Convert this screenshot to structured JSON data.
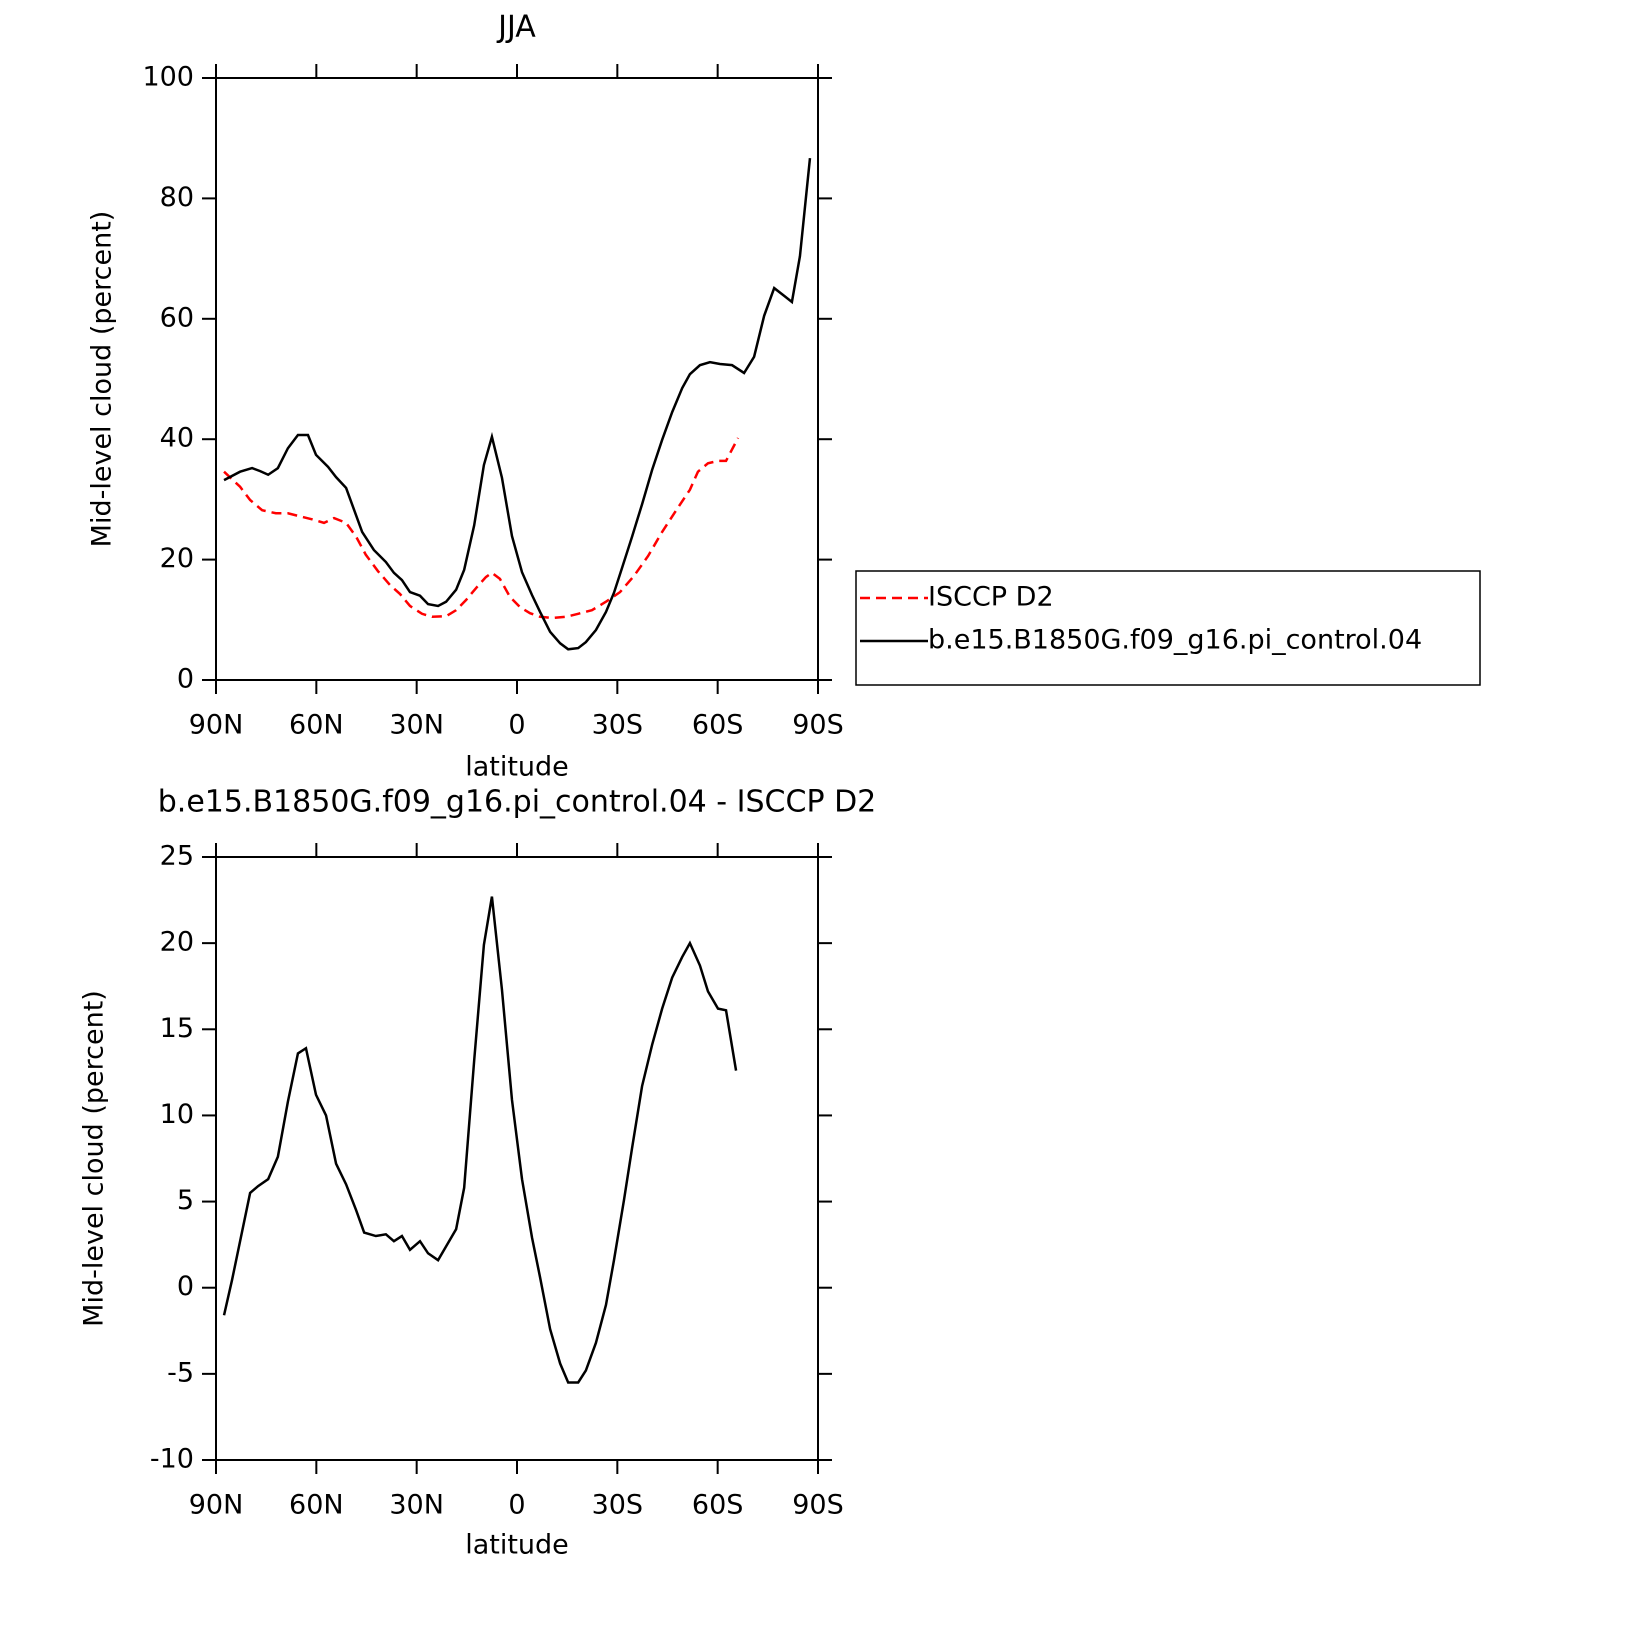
{
  "chart_data": [
    {
      "type": "line",
      "title": "JJA",
      "xlabel": "latitude",
      "ylabel": "Mid-level cloud (percent)",
      "xlim": [
        90,
        -90
      ],
      "xticks": [
        {
          "value": 90,
          "label": "90N"
        },
        {
          "value": 60,
          "label": "60N"
        },
        {
          "value": 30,
          "label": "30N"
        },
        0,
        {
          "value": -30,
          "label": "30S"
        },
        {
          "value": -60,
          "label": "60S"
        },
        {
          "value": -90,
          "label": "90S"
        }
      ],
      "ylim": [
        0,
        100
      ],
      "yticks": [
        0,
        20,
        40,
        60,
        80,
        100
      ],
      "legend": "right",
      "series": [
        {
          "name": "ISCCP D2",
          "color": "#ff0000",
          "linestyle": "dashed",
          "x": [
            87.6,
            82.8,
            79.8,
            76.2,
            72.1,
            68.5,
            65.0,
            61.3,
            57.7,
            54.7,
            51.1,
            48.1,
            45.2,
            41.6,
            38.0,
            35.0,
            32.0,
            28.4,
            25.4,
            21.2,
            18.2,
            15.2,
            12.2,
            9.3,
            7.5,
            5.1,
            2.1,
            -0.9,
            -3.9,
            -6.9,
            -10.5,
            -14.7,
            -18.3,
            -22.4,
            -26.6,
            -30.8,
            -35.0,
            -39.2,
            -43.4,
            -47.6,
            -51.7,
            -54.1,
            -57.1,
            -60.1,
            -62.5,
            -66.1
          ],
          "values": [
            34.6,
            32.1,
            29.9,
            28.2,
            27.7,
            27.7,
            27.2,
            26.7,
            26.1,
            26.9,
            26.1,
            23.8,
            20.8,
            18.1,
            15.8,
            14.3,
            12.3,
            11.0,
            10.5,
            10.6,
            11.6,
            13.3,
            15.3,
            17.1,
            17.8,
            16.8,
            13.8,
            12.1,
            11.1,
            10.5,
            10.3,
            10.5,
            11.0,
            11.6,
            13.0,
            14.6,
            17.3,
            20.6,
            24.6,
            28.2,
            31.6,
            34.6,
            36.0,
            36.4,
            36.4,
            40.2
          ]
        },
        {
          "name": "b.e15.B1850G.f09_g16.pi_control.04",
          "color": "#000000",
          "linestyle": "solid",
          "x": [
            87.6,
            82.8,
            79.2,
            76.8,
            74.4,
            71.5,
            68.5,
            65.5,
            62.5,
            60.1,
            56.5,
            54.1,
            51.1,
            46.3,
            42.8,
            39.2,
            36.8,
            34.4,
            32.0,
            29.0,
            26.6,
            23.6,
            21.2,
            18.2,
            15.8,
            12.8,
            9.9,
            7.5,
            4.5,
            1.5,
            -1.5,
            -4.5,
            -6.9,
            -9.9,
            -12.9,
            -15.3,
            -18.3,
            -20.6,
            -23.6,
            -26.6,
            -29.0,
            -31.4,
            -34.4,
            -37.4,
            -40.4,
            -43.4,
            -46.4,
            -49.4,
            -51.7,
            -54.7,
            -57.7,
            -60.7,
            -64.3,
            -67.9,
            -70.9,
            -73.9,
            -76.9,
            -79.9,
            -82.2,
            -84.6,
            -87.6
          ],
          "values": [
            33.2,
            34.6,
            35.2,
            34.7,
            34.1,
            35.2,
            38.5,
            40.7,
            40.7,
            37.4,
            35.4,
            33.7,
            31.9,
            24.6,
            21.6,
            19.6,
            17.8,
            16.6,
            14.6,
            14.0,
            12.6,
            12.3,
            13.0,
            15.0,
            18.3,
            25.7,
            35.7,
            40.4,
            33.6,
            23.9,
            17.9,
            14.1,
            11.3,
            8.0,
            6.1,
            5.1,
            5.3,
            6.3,
            8.3,
            11.3,
            14.5,
            18.6,
            23.8,
            29.2,
            34.9,
            39.9,
            44.5,
            48.5,
            50.8,
            52.3,
            52.8,
            52.5,
            52.3,
            51.0,
            53.7,
            60.5,
            65.1,
            63.8,
            62.8,
            70.4,
            86.7
          ]
        }
      ]
    },
    {
      "type": "line",
      "title": "b.e15.B1850G.f09_g16.pi_control.04 - ISCCP D2",
      "xlabel": "latitude",
      "ylabel": "Mid-level cloud (percent)",
      "xlim": [
        90,
        -90
      ],
      "xticks": [
        {
          "value": 90,
          "label": "90N"
        },
        {
          "value": 60,
          "label": "60N"
        },
        {
          "value": 30,
          "label": "30N"
        },
        0,
        {
          "value": -30,
          "label": "30S"
        },
        {
          "value": -60,
          "label": "60S"
        },
        {
          "value": -90,
          "label": "90S"
        }
      ],
      "ylim": [
        -10,
        25
      ],
      "yticks": [
        -10,
        -5,
        0,
        5,
        10,
        15,
        20,
        25
      ],
      "series": [
        {
          "color": "#000000",
          "linestyle": "solid",
          "x": [
            87.6,
            85.2,
            82.8,
            79.8,
            77.4,
            74.4,
            71.5,
            68.5,
            65.5,
            63.1,
            60.1,
            57.1,
            54.1,
            51.1,
            48.1,
            45.7,
            42.2,
            39.2,
            36.8,
            34.4,
            32.0,
            29.0,
            26.6,
            23.6,
            21.2,
            18.2,
            15.8,
            12.8,
            9.9,
            7.5,
            4.5,
            1.5,
            -1.5,
            -4.5,
            -6.9,
            -9.9,
            -12.9,
            -15.3,
            -18.3,
            -20.6,
            -23.6,
            -26.6,
            -29.0,
            -32.0,
            -34.4,
            -37.4,
            -40.4,
            -43.4,
            -46.4,
            -49.4,
            -51.7,
            -54.7,
            -57.1,
            -60.1,
            -62.5,
            -65.5
          ],
          "values": [
            -1.6,
            0.45,
            2.7,
            5.5,
            5.9,
            6.3,
            7.6,
            10.8,
            13.6,
            13.9,
            11.2,
            10.0,
            7.2,
            6.0,
            4.5,
            3.2,
            3.0,
            3.1,
            2.7,
            3.0,
            2.2,
            2.7,
            2.0,
            1.6,
            2.4,
            3.4,
            5.8,
            13.2,
            19.9,
            22.7,
            17.3,
            10.9,
            6.3,
            2.9,
            0.6,
            -2.4,
            -4.4,
            -5.5,
            -5.5,
            -4.8,
            -3.2,
            -1.0,
            1.6,
            5.1,
            8.1,
            11.7,
            14.1,
            16.2,
            18.0,
            19.2,
            20.0,
            18.7,
            17.2,
            16.2,
            16.1,
            12.6
          ]
        }
      ]
    }
  ]
}
